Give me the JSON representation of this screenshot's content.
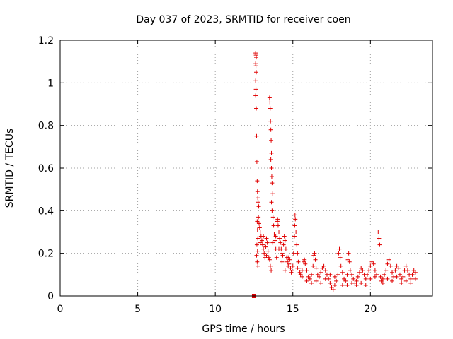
{
  "chart_data": {
    "type": "scatter",
    "title": "Day 037 of 2023, SRMTID for receiver coen",
    "xlabel": "GPS time / hours",
    "ylabel": "SRMTID / TECUs",
    "xlim": [
      0,
      24
    ],
    "ylim": [
      0,
      1.2
    ],
    "xticks": [
      0,
      5,
      10,
      15,
      20
    ],
    "xtick_labels": [
      "0",
      "5",
      "10",
      "15",
      "20"
    ],
    "yticks": [
      0,
      0.2,
      0.4,
      0.6,
      0.8,
      1.0,
      1.2
    ],
    "ytick_labels": [
      "0",
      "0.2",
      "0.4",
      "0.6",
      "0.8",
      "1",
      "1.2"
    ],
    "grid": true,
    "series_color": "#e00000",
    "marker": "plus",
    "points": [
      [
        12.6,
        1.14
      ],
      [
        12.62,
        1.13
      ],
      [
        12.64,
        1.12
      ],
      [
        12.6,
        1.09
      ],
      [
        12.62,
        1.08
      ],
      [
        12.64,
        1.05
      ],
      [
        12.6,
        1.01
      ],
      [
        12.62,
        0.97
      ],
      [
        12.6,
        0.94
      ],
      [
        12.64,
        0.88
      ],
      [
        12.66,
        0.75
      ],
      [
        12.68,
        0.63
      ],
      [
        12.7,
        0.54
      ],
      [
        12.72,
        0.49
      ],
      [
        12.74,
        0.46
      ],
      [
        12.76,
        0.44
      ],
      [
        12.8,
        0.42
      ],
      [
        12.7,
        0.35
      ],
      [
        12.72,
        0.31
      ],
      [
        12.74,
        0.27
      ],
      [
        12.68,
        0.24
      ],
      [
        12.72,
        0.21
      ],
      [
        12.66,
        0.19
      ],
      [
        12.7,
        0.16
      ],
      [
        12.74,
        0.14
      ],
      [
        12.78,
        0.37
      ],
      [
        12.82,
        0.34
      ],
      [
        12.86,
        0.32
      ],
      [
        12.9,
        0.3
      ],
      [
        12.95,
        0.28
      ],
      [
        13.0,
        0.26
      ],
      [
        13.05,
        0.24
      ],
      [
        13.1,
        0.22
      ],
      [
        13.15,
        0.2
      ],
      [
        13.2,
        0.18
      ],
      [
        13.25,
        0.23
      ],
      [
        13.3,
        0.27
      ],
      [
        13.35,
        0.25
      ],
      [
        13.4,
        0.21
      ],
      [
        13.45,
        0.18
      ],
      [
        13.5,
        0.17
      ],
      [
        13.55,
        0.14
      ],
      [
        13.6,
        0.12
      ],
      [
        13.5,
        0.93
      ],
      [
        13.52,
        0.91
      ],
      [
        13.54,
        0.88
      ],
      [
        13.56,
        0.82
      ],
      [
        13.58,
        0.78
      ],
      [
        13.6,
        0.73
      ],
      [
        13.62,
        0.67
      ],
      [
        13.58,
        0.64
      ],
      [
        13.62,
        0.6
      ],
      [
        13.64,
        0.56
      ],
      [
        13.66,
        0.53
      ],
      [
        13.7,
        0.48
      ],
      [
        13.62,
        0.44
      ],
      [
        13.66,
        0.4
      ],
      [
        13.72,
        0.37
      ],
      [
        13.76,
        0.33
      ],
      [
        13.8,
        0.29
      ],
      [
        13.85,
        0.26
      ],
      [
        13.9,
        0.22
      ],
      [
        13.95,
        0.18
      ],
      [
        14.0,
        0.35
      ],
      [
        14.02,
        0.36
      ],
      [
        14.05,
        0.33
      ],
      [
        14.1,
        0.3
      ],
      [
        14.15,
        0.27
      ],
      [
        14.2,
        0.25
      ],
      [
        14.25,
        0.22
      ],
      [
        14.3,
        0.2
      ],
      [
        14.35,
        0.19
      ],
      [
        14.4,
        0.24
      ],
      [
        14.45,
        0.28
      ],
      [
        14.5,
        0.26
      ],
      [
        14.55,
        0.22
      ],
      [
        14.6,
        0.18
      ],
      [
        14.65,
        0.16
      ],
      [
        14.7,
        0.14
      ],
      [
        14.75,
        0.15
      ],
      [
        14.8,
        0.17
      ],
      [
        14.85,
        0.13
      ],
      [
        14.9,
        0.11
      ],
      [
        14.95,
        0.12
      ],
      [
        15.0,
        0.14
      ],
      [
        15.05,
        0.2
      ],
      [
        15.1,
        0.28
      ],
      [
        15.12,
        0.33
      ],
      [
        15.14,
        0.38
      ],
      [
        15.16,
        0.36
      ],
      [
        15.2,
        0.3
      ],
      [
        15.25,
        0.24
      ],
      [
        15.3,
        0.2
      ],
      [
        15.35,
        0.16
      ],
      [
        15.4,
        0.13
      ],
      [
        15.45,
        0.11
      ],
      [
        15.5,
        0.1
      ],
      [
        15.6,
        0.12
      ],
      [
        15.7,
        0.16
      ],
      [
        15.75,
        0.17
      ],
      [
        15.8,
        0.15
      ],
      [
        15.9,
        0.12
      ],
      [
        16.0,
        0.09
      ],
      [
        16.1,
        0.08
      ],
      [
        16.2,
        0.1
      ],
      [
        16.3,
        0.14
      ],
      [
        16.35,
        0.19
      ],
      [
        16.4,
        0.2
      ],
      [
        16.45,
        0.17
      ],
      [
        16.5,
        0.13
      ],
      [
        16.6,
        0.1
      ],
      [
        16.7,
        0.09
      ],
      [
        16.8,
        0.11
      ],
      [
        16.9,
        0.13
      ],
      [
        17.0,
        0.14
      ],
      [
        17.1,
        0.12
      ],
      [
        17.2,
        0.1
      ],
      [
        17.3,
        0.08
      ],
      [
        17.4,
        0.06
      ],
      [
        17.5,
        0.04
      ],
      [
        17.6,
        0.03
      ],
      [
        17.7,
        0.05
      ],
      [
        17.8,
        0.07
      ],
      [
        17.9,
        0.1
      ],
      [
        17.95,
        0.2
      ],
      [
        18.0,
        0.22
      ],
      [
        18.05,
        0.18
      ],
      [
        18.1,
        0.14
      ],
      [
        18.2,
        0.11
      ],
      [
        18.3,
        0.08
      ],
      [
        18.4,
        0.07
      ],
      [
        18.5,
        0.1
      ],
      [
        18.55,
        0.17
      ],
      [
        18.6,
        0.2
      ],
      [
        18.65,
        0.16
      ],
      [
        18.7,
        0.12
      ],
      [
        18.8,
        0.1
      ],
      [
        18.9,
        0.08
      ],
      [
        19.0,
        0.06
      ],
      [
        19.1,
        0.07
      ],
      [
        19.2,
        0.09
      ],
      [
        19.3,
        0.11
      ],
      [
        19.4,
        0.13
      ],
      [
        19.5,
        0.12
      ],
      [
        19.6,
        0.1
      ],
      [
        19.7,
        0.08
      ],
      [
        19.8,
        0.1
      ],
      [
        19.9,
        0.12
      ],
      [
        20.0,
        0.14
      ],
      [
        20.1,
        0.16
      ],
      [
        20.2,
        0.15
      ],
      [
        20.3,
        0.12
      ],
      [
        20.4,
        0.1
      ],
      [
        20.5,
        0.3
      ],
      [
        20.55,
        0.27
      ],
      [
        20.6,
        0.24
      ],
      [
        20.65,
        0.09
      ],
      [
        20.7,
        0.07
      ],
      [
        20.8,
        0.08
      ],
      [
        20.9,
        0.1
      ],
      [
        21.0,
        0.12
      ],
      [
        21.1,
        0.15
      ],
      [
        21.2,
        0.17
      ],
      [
        21.3,
        0.14
      ],
      [
        21.4,
        0.11
      ],
      [
        21.5,
        0.09
      ],
      [
        21.6,
        0.12
      ],
      [
        21.7,
        0.14
      ],
      [
        21.8,
        0.13
      ],
      [
        21.9,
        0.1
      ],
      [
        22.0,
        0.08
      ],
      [
        22.1,
        0.09
      ],
      [
        22.2,
        0.12
      ],
      [
        22.3,
        0.14
      ],
      [
        22.4,
        0.12
      ],
      [
        22.5,
        0.1
      ],
      [
        22.6,
        0.08
      ],
      [
        22.7,
        0.1
      ],
      [
        22.8,
        0.12
      ],
      [
        22.9,
        0.11
      ],
      [
        12.9,
        0.25
      ],
      [
        13.1,
        0.28
      ],
      [
        13.3,
        0.19
      ],
      [
        13.7,
        0.25
      ],
      [
        13.9,
        0.28
      ],
      [
        14.1,
        0.22
      ],
      [
        14.3,
        0.16
      ],
      [
        14.5,
        0.12
      ],
      [
        14.7,
        0.18
      ],
      [
        15.3,
        0.13
      ],
      [
        15.6,
        0.09
      ],
      [
        15.9,
        0.07
      ],
      [
        16.2,
        0.06
      ],
      [
        16.5,
        0.07
      ],
      [
        16.8,
        0.06
      ],
      [
        17.1,
        0.08
      ],
      [
        17.4,
        0.1
      ],
      [
        17.7,
        0.09
      ],
      [
        18.2,
        0.05
      ],
      [
        18.5,
        0.05
      ],
      [
        18.8,
        0.06
      ],
      [
        19.1,
        0.05
      ],
      [
        19.4,
        0.06
      ],
      [
        19.7,
        0.05
      ],
      [
        20.0,
        0.08
      ],
      [
        20.3,
        0.09
      ],
      [
        20.8,
        0.06
      ],
      [
        21.1,
        0.08
      ],
      [
        21.4,
        0.07
      ],
      [
        21.7,
        0.09
      ],
      [
        22.0,
        0.06
      ],
      [
        22.3,
        0.07
      ],
      [
        22.6,
        0.06
      ],
      [
        22.9,
        0.08
      ]
    ],
    "square_marker": [
      12.5,
      0
    ]
  }
}
